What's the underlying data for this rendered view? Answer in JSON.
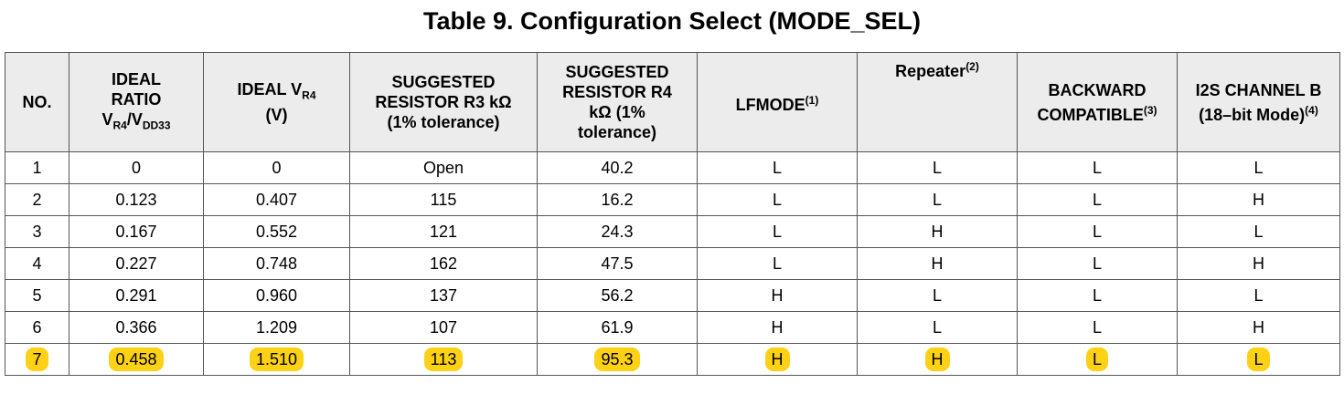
{
  "title": "Table 9.  Configuration Select (MODE_SEL)",
  "table": {
    "header": [
      {
        "text": "NO."
      },
      {
        "lines": [
          "IDEAL",
          "RATIO"
        ],
        "v": "V",
        "sub": "R4",
        "slash": "/V",
        "sub2": "DD33"
      },
      {
        "text": "IDEAL V",
        "sub": "R4",
        "unit": "(V)"
      },
      {
        "lines": [
          "SUGGESTED",
          "RESISTOR R3 kΩ",
          "(1% tolerance)"
        ]
      },
      {
        "lines": [
          "SUGGESTED",
          "RESISTOR R4",
          "kΩ (1%",
          "tolerance)"
        ]
      },
      {
        "text": "LFMODE",
        "sup": "(1)"
      },
      {
        "text": "Repeater",
        "sup": "(2)"
      },
      {
        "lines": [
          "BACKWARD"
        ],
        "text": "COMPATIBLE",
        "sup": "(3)"
      },
      {
        "lines": [
          "I2S CHANNEL B"
        ],
        "text": "(18–bit Mode)",
        "sup": "(4)"
      }
    ],
    "rows": [
      {
        "cells": [
          "1",
          "0",
          "0",
          "Open",
          "40.2",
          "L",
          "L",
          "L",
          "L"
        ]
      },
      {
        "cells": [
          "2",
          "0.123",
          "0.407",
          "115",
          "16.2",
          "L",
          "L",
          "L",
          "H"
        ]
      },
      {
        "cells": [
          "3",
          "0.167",
          "0.552",
          "121",
          "24.3",
          "L",
          "H",
          "L",
          "L"
        ]
      },
      {
        "cells": [
          "4",
          "0.227",
          "0.748",
          "162",
          "47.5",
          "L",
          "H",
          "L",
          "H"
        ]
      },
      {
        "cells": [
          "5",
          "0.291",
          "0.960",
          "137",
          "56.2",
          "H",
          "L",
          "L",
          "L"
        ]
      },
      {
        "cells": [
          "6",
          "0.366",
          "1.209",
          "107",
          "61.9",
          "H",
          "L",
          "L",
          "H"
        ]
      },
      {
        "cells": [
          "7",
          "0.458",
          "1.510",
          "113",
          "95.3",
          "H",
          "H",
          "L",
          "L"
        ],
        "highlight": "#fcd116"
      }
    ]
  }
}
